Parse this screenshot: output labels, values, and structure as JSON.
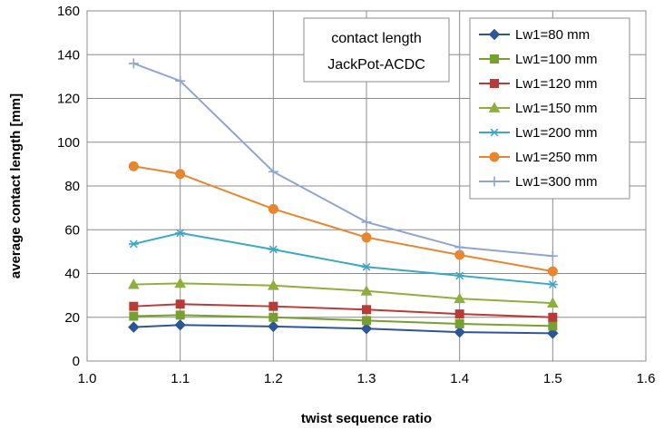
{
  "chart_data": {
    "type": "line",
    "xlabel": "twist sequence ratio",
    "ylabel": "average contact length [mm]",
    "xlim": [
      1.0,
      1.6
    ],
    "ylim": [
      0,
      160
    ],
    "x_ticks": [
      "1.0",
      "1.1",
      "1.2",
      "1.3",
      "1.4",
      "1.5",
      "1.6"
    ],
    "y_ticks": [
      "0",
      "20",
      "40",
      "60",
      "80",
      "100",
      "120",
      "140",
      "160"
    ],
    "grid": true,
    "annotation": [
      "contact length",
      "JackPot-ACDC"
    ],
    "legend_position": "top-right",
    "x": [
      1.05,
      1.1,
      1.2,
      1.3,
      1.4,
      1.5
    ],
    "series": [
      {
        "name": "Lw1=80 mm",
        "color": "#2E5597",
        "marker": "diamond",
        "values": [
          15.5,
          16.5,
          15.8,
          14.8,
          13.2,
          12.7
        ]
      },
      {
        "name": "Lw1=100 mm",
        "color": "#77A02F",
        "marker": "square",
        "values": [
          20.5,
          21.0,
          20.0,
          18.5,
          17.0,
          16.0
        ]
      },
      {
        "name": "Lw1=120 mm",
        "color": "#B83B38",
        "marker": "square",
        "values": [
          25.0,
          26.0,
          25.0,
          23.5,
          21.5,
          20.0
        ]
      },
      {
        "name": "Lw1=150 mm",
        "color": "#8FAE3E",
        "marker": "triangle",
        "values": [
          35.0,
          35.5,
          34.5,
          32.0,
          28.5,
          26.5
        ]
      },
      {
        "name": "Lw1=200 mm",
        "color": "#3BA8C6",
        "marker": "star",
        "values": [
          53.5,
          58.5,
          51.0,
          43.0,
          39.0,
          35.0
        ]
      },
      {
        "name": "Lw1=250 mm",
        "color": "#E8862F",
        "marker": "circle",
        "values": [
          89.0,
          85.5,
          69.5,
          56.5,
          48.5,
          41.0
        ]
      },
      {
        "name": "Lw1=300 mm",
        "color": "#8FA5D1",
        "marker": "plus",
        "values": [
          136.0,
          128.0,
          86.5,
          63.5,
          52.0,
          48.0
        ]
      }
    ]
  }
}
